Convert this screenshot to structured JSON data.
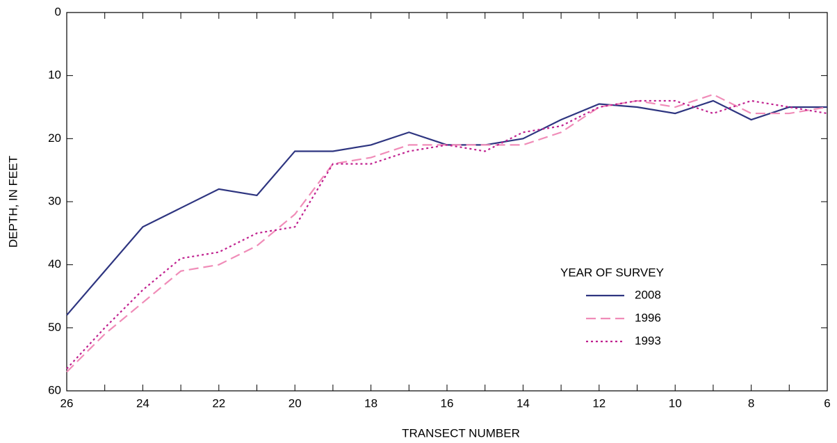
{
  "chart_data": {
    "type": "line",
    "x_label": "TRANSECT NUMBER",
    "y_label": "DEPTH, IN FEET",
    "x": [
      26,
      25,
      24,
      23,
      22,
      21,
      20,
      19,
      18,
      17,
      16,
      15,
      14,
      13,
      12,
      11,
      10,
      9,
      8,
      7,
      6
    ],
    "series": [
      {
        "name": "2008",
        "color": "#2e3580",
        "dash": "solid",
        "values": [
          48,
          41,
          34,
          31,
          28,
          29,
          22,
          22,
          21,
          19,
          21,
          21,
          20,
          17,
          14.5,
          15,
          16,
          14,
          17,
          15,
          15
        ]
      },
      {
        "name": "1996",
        "color": "#f08cb8",
        "dash": "dashed",
        "values": [
          57,
          51,
          46,
          41,
          40,
          37,
          32,
          24,
          23,
          21,
          21,
          21,
          21,
          19,
          15,
          14,
          15,
          13,
          16,
          16,
          15
        ]
      },
      {
        "name": "1993",
        "color": "#c0208f",
        "dash": "dotted",
        "values": [
          56.5,
          50,
          44,
          39,
          38,
          35,
          34,
          24,
          24,
          22,
          21,
          22,
          19,
          18,
          15,
          14,
          14,
          16,
          14,
          15,
          16
        ]
      }
    ],
    "legend_title": "YEAR OF SURVEY",
    "xlim": [
      26,
      6
    ],
    "xticks": [
      26,
      24,
      22,
      20,
      18,
      16,
      14,
      12,
      10,
      8,
      6
    ],
    "xminorticks": [
      25,
      23,
      21,
      19,
      17,
      15,
      13,
      11,
      9,
      7
    ],
    "ylim": [
      0,
      60
    ],
    "yticks": [
      0,
      10,
      20,
      30,
      40,
      50,
      60
    ],
    "y_inverted": true,
    "grid": false
  }
}
